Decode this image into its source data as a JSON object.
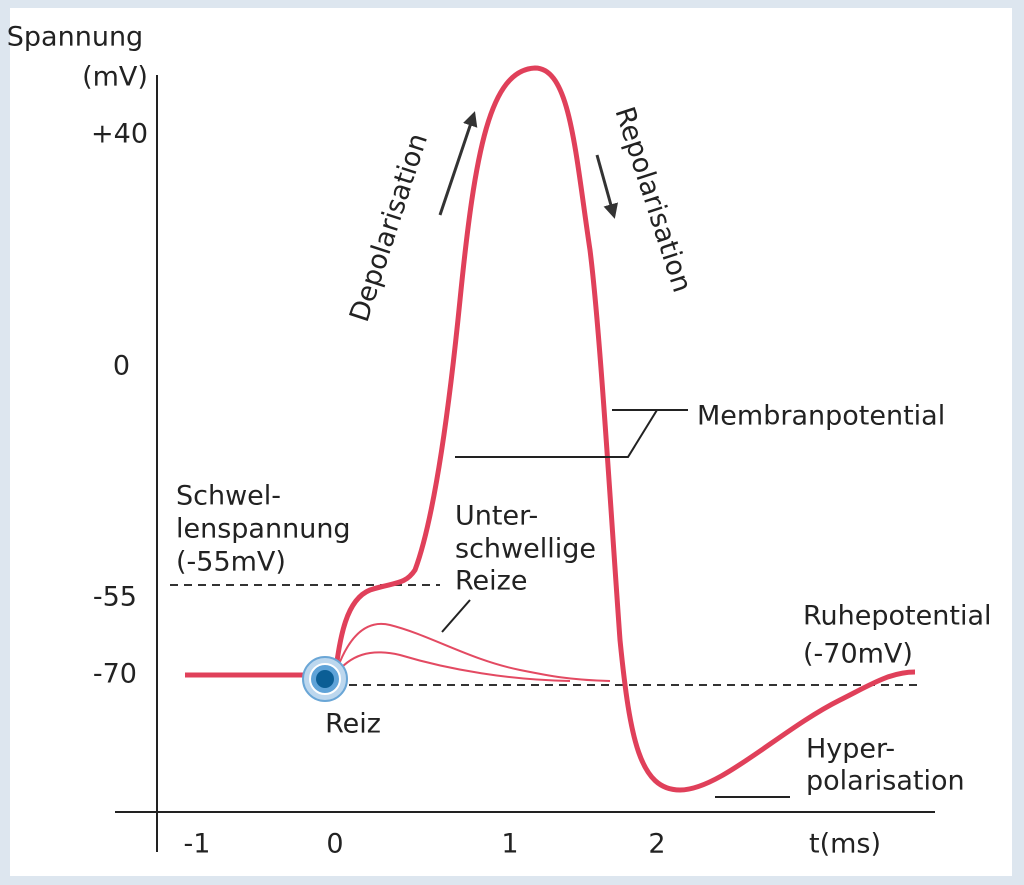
{
  "axes": {
    "y_label": "Spannung",
    "y_unit": "(mV)",
    "y_ticks": [
      "+40",
      "0",
      "-55",
      "-70"
    ],
    "x_ticks": [
      "-1",
      "0",
      "1",
      "2"
    ],
    "x_label": "t(ms)"
  },
  "annotations": {
    "depolarisation": "Depolarisation",
    "repolarisation": "Repolarisation",
    "membranpotential": "Membranpotential",
    "schwellenspannung": [
      "Schwel-",
      "lenspannung",
      "(-55mV)"
    ],
    "unterschwellige_reize": [
      "Unter-",
      "schwellige",
      "Reize"
    ],
    "ruhepotential": [
      "Ruhepotential",
      "(-70mV)"
    ],
    "hyperpolarisation": [
      "Hyper-",
      "polarisation"
    ],
    "reiz": "Reiz"
  }
}
